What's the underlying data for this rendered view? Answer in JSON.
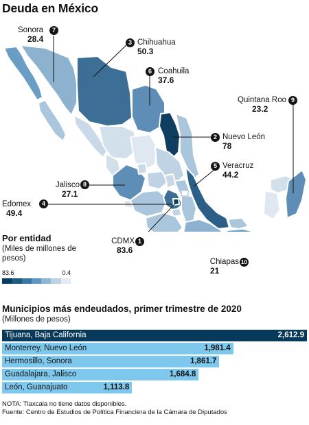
{
  "title": "Deuda en México",
  "map": {
    "callouts": [
      {
        "rank": "7",
        "state": "Sonora",
        "value": "28.4"
      },
      {
        "rank": "3",
        "state": "Chihuahua",
        "value": "50.3"
      },
      {
        "rank": "6",
        "state": "Coahuila",
        "value": "37.6"
      },
      {
        "rank": "9",
        "state": "Quintana Roo",
        "value": "23.2"
      },
      {
        "rank": "2",
        "state": "Nuevo León",
        "value": "78"
      },
      {
        "rank": "5",
        "state": "Veracruz",
        "value": "44.2"
      },
      {
        "rank": "8",
        "state": "Jalisco",
        "value": "27.1"
      },
      {
        "rank": "4",
        "state": "Edomex",
        "value": "49.4"
      },
      {
        "rank": "1",
        "state": "CDMX",
        "value": "83.6"
      },
      {
        "rank": "10",
        "state": "Chiapas",
        "value": "21"
      }
    ]
  },
  "legend": {
    "title": "Por entidad",
    "unit": "(Miles de millones de pesos)",
    "max_label": "83.6",
    "min_label": "0.4",
    "colors": [
      "#0b3d5e",
      "#1e5a82",
      "#3a78a3",
      "#5f97bf",
      "#8db6d4",
      "#bdd3e4",
      "#e3ecf3"
    ]
  },
  "municipalities": {
    "title": "Municipios más endeudados, primer trimestre de 2020",
    "unit": "(Millones de pesos)",
    "rows": [
      {
        "name": "Tijuana, Baja California",
        "label": "2,612.9",
        "value": 2612.9
      },
      {
        "name": "Monterrey, Nuevo León",
        "label": "1,981.4",
        "value": 1981.4
      },
      {
        "name": "Hermosillo, Sonora",
        "label": "1,861.7",
        "value": 1861.7
      },
      {
        "name": "Guadalajara, Jalisco",
        "label": "1,684.8",
        "value": 1684.8
      },
      {
        "name": "León, Guanajuato",
        "label": "1,113.8",
        "value": 1113.8
      }
    ],
    "colors": {
      "top": "#07395b",
      "rest": "#7ec8ee"
    }
  },
  "notes": {
    "note": "NOTA: Tlaxcala no tiene datos disponibles.",
    "source": "Fuente: Centro de Estudios de Política Financiera de la Cámara de Diputados"
  }
}
